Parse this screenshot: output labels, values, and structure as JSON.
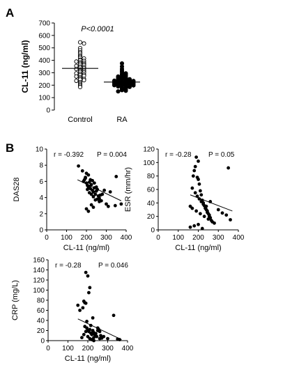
{
  "figure": {
    "panel_a_label": "A",
    "panel_b_label": "B"
  },
  "chart_data": [
    {
      "type": "scatter",
      "title": "",
      "ylabel": "CL-11 (ng/ml)",
      "xlabel": "",
      "categories": [
        "Control",
        "RA"
      ],
      "ylim": [
        0,
        700
      ],
      "yticks": [
        0,
        100,
        200,
        300,
        400,
        500,
        600,
        700
      ],
      "annotation": "P<0.0001",
      "marker_styles": [
        "open-circle",
        "filled-circle"
      ],
      "means": [
        335,
        225
      ],
      "series": [
        {
          "values": [
            545,
            535,
            498,
            480,
            465,
            455,
            440,
            430,
            420,
            415,
            405,
            400,
            395,
            390,
            385,
            380,
            375,
            370,
            365,
            360,
            355,
            350,
            345,
            340,
            335,
            330,
            325,
            320,
            315,
            310,
            305,
            300,
            295,
            290,
            285,
            280,
            275,
            270,
            265,
            255,
            250,
            245,
            240,
            235,
            225,
            215,
            205,
            195,
            185
          ]
        },
        {
          "values": [
            375,
            350,
            330,
            315,
            305,
            295,
            290,
            285,
            280,
            275,
            270,
            265,
            262,
            258,
            255,
            252,
            250,
            248,
            245,
            243,
            240,
            238,
            236,
            234,
            232,
            230,
            228,
            226,
            224,
            222,
            220,
            218,
            216,
            214,
            212,
            210,
            208,
            206,
            204,
            202,
            200,
            198,
            196,
            193,
            190,
            186,
            182,
            178,
            172,
            165,
            160,
            155,
            150
          ]
        }
      ]
    },
    {
      "type": "scatter",
      "xlabel": "CL-11 (ng/ml)",
      "ylabel": "DAS28",
      "xlim": [
        0,
        400
      ],
      "ylim": [
        0,
        10
      ],
      "xticks": [
        0,
        100,
        200,
        300,
        400
      ],
      "yticks": [
        0,
        2,
        4,
        6,
        8,
        10
      ],
      "stat_r": "r = -0.392",
      "stat_p": "P = 0.004",
      "fit_line": {
        "x": [
          155,
          375
        ],
        "y": [
          6.2,
          3.6
        ]
      },
      "x": [
        160,
        180,
        185,
        195,
        200,
        205,
        210,
        215,
        220,
        225,
        230,
        235,
        240,
        245,
        250,
        255,
        260,
        265,
        270,
        200,
        210,
        220,
        230,
        240,
        250,
        190,
        205,
        215,
        225,
        235,
        245,
        255,
        265,
        275,
        280,
        290,
        300,
        310,
        320,
        345,
        350,
        375,
        200,
        210,
        195,
        215,
        225,
        235
      ],
      "y": [
        7.9,
        7.3,
        6.0,
        6.5,
        5.8,
        5.5,
        5.3,
        5.9,
        5.1,
        5.6,
        4.9,
        4.7,
        5.8,
        4.4,
        5.3,
        5.0,
        4.2,
        3.9,
        4.3,
        7.0,
        6.8,
        6.2,
        6.1,
        5.2,
        4.8,
        6.2,
        5.0,
        4.6,
        4.4,
        4.1,
        3.7,
        3.8,
        3.5,
        3.6,
        4.4,
        4.9,
        3.2,
        2.9,
        4.7,
        3.0,
        6.6,
        3.2,
        2.6,
        2.3,
        6.4,
        5.4,
        3.1,
        2.8
      ]
    },
    {
      "type": "scatter",
      "xlabel": "CL-11 (ng/ml)",
      "ylabel": "ESR (mm/hr)",
      "xlim": [
        0,
        400
      ],
      "ylim": [
        0,
        120
      ],
      "xticks": [
        0,
        100,
        200,
        300,
        400
      ],
      "yticks": [
        0,
        20,
        40,
        60,
        80,
        100,
        120
      ],
      "stat_r": "r = -0.28",
      "stat_p": "P = 0.05",
      "fit_line": {
        "x": [
          160,
          370
        ],
        "y": [
          52,
          28
        ]
      },
      "x": [
        160,
        170,
        175,
        180,
        185,
        190,
        195,
        200,
        205,
        210,
        215,
        220,
        225,
        230,
        235,
        240,
        245,
        250,
        255,
        260,
        265,
        270,
        280,
        300,
        320,
        340,
        350,
        360,
        185,
        195,
        205,
        215,
        225,
        235,
        245,
        255,
        170,
        190,
        210,
        230,
        250,
        200,
        180,
        160,
        200,
        240,
        220,
        260
      ],
      "y": [
        35,
        62,
        80,
        88,
        94,
        108,
        78,
        75,
        68,
        58,
        52,
        44,
        40,
        36,
        32,
        30,
        28,
        24,
        20,
        18,
        14,
        12,
        10,
        30,
        25,
        22,
        92,
        15,
        55,
        50,
        46,
        42,
        38,
        34,
        26,
        22,
        32,
        28,
        24,
        20,
        16,
        102,
        6,
        4,
        8,
        35,
        2,
        42
      ]
    },
    {
      "type": "scatter",
      "xlabel": "CL-11 (ng/ml)",
      "ylabel": "CRP (mg/L)",
      "xlim": [
        0,
        400
      ],
      "ylim": [
        0,
        160
      ],
      "xticks": [
        0,
        100,
        200,
        300,
        400
      ],
      "yticks": [
        0,
        20,
        40,
        60,
        80,
        100,
        120,
        140,
        160
      ],
      "stat_r": "r = -0.28",
      "stat_p": "P = 0.046",
      "fit_line": {
        "x": [
          150,
          370
        ],
        "y": [
          43,
          2
        ]
      },
      "x": [
        150,
        160,
        175,
        180,
        185,
        190,
        195,
        200,
        205,
        210,
        215,
        220,
        225,
        230,
        235,
        240,
        245,
        250,
        255,
        260,
        265,
        270,
        280,
        300,
        330,
        350,
        360,
        170,
        180,
        190,
        200,
        210,
        220,
        230,
        240,
        250,
        260,
        190,
        200,
        210,
        205,
        215,
        225,
        195,
        185,
        230
      ],
      "y": [
        70,
        60,
        65,
        78,
        75,
        74,
        25,
        20,
        18,
        22,
        15,
        12,
        20,
        16,
        12,
        10,
        8,
        25,
        22,
        18,
        10,
        5,
        8,
        4,
        50,
        3,
        2,
        6,
        12,
        18,
        8,
        4,
        2,
        6,
        14,
        20,
        4,
        135,
        128,
        105,
        95,
        30,
        45,
        38,
        28,
        0
      ]
    }
  ]
}
